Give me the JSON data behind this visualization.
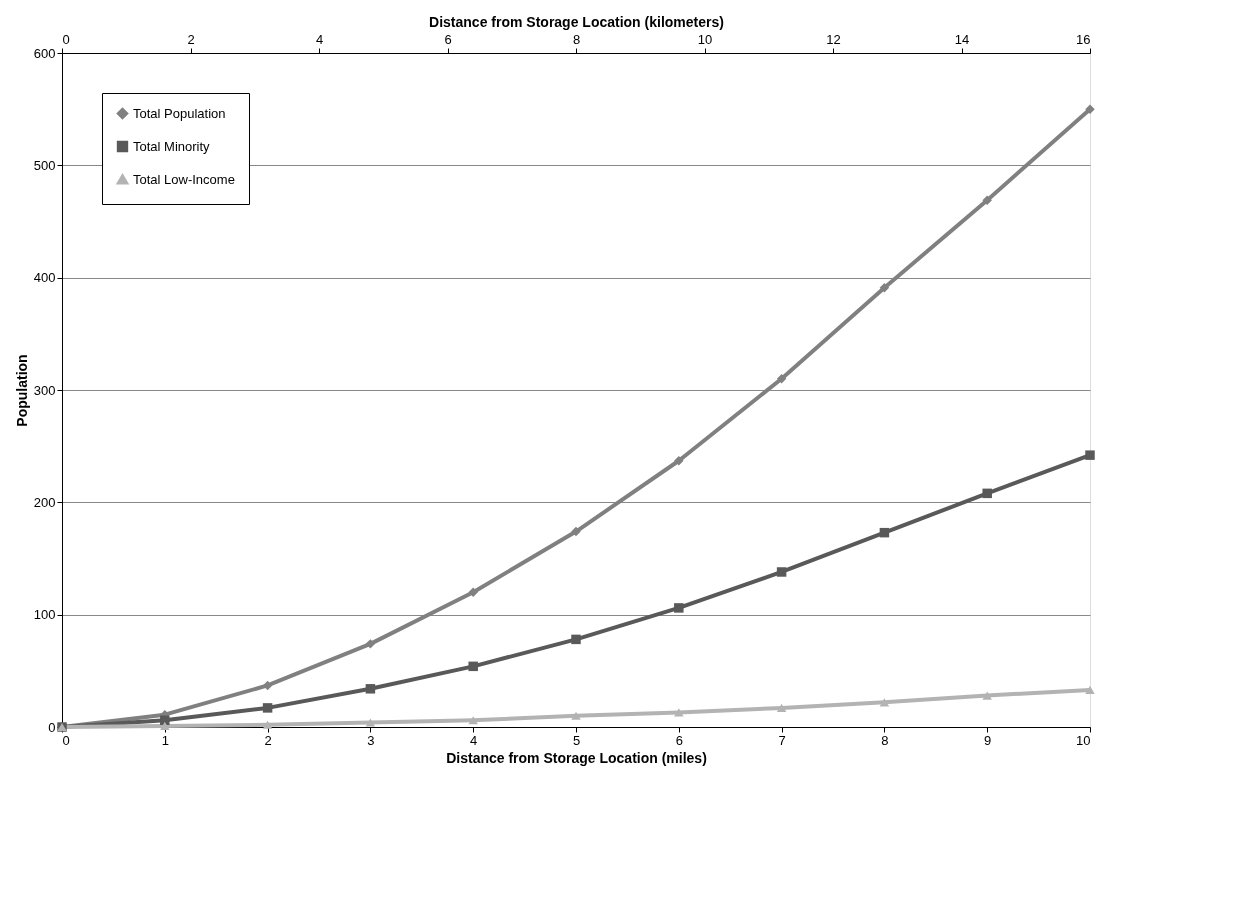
{
  "chart_data": {
    "type": "line",
    "xlabel": "Distance from Storage Location (miles)",
    "ylabel": "Population",
    "x2label": "Distance from Storage Location (kilometers)",
    "x": [
      0,
      1,
      2,
      3,
      4,
      5,
      6,
      7,
      8,
      9,
      10
    ],
    "xlim": [
      0,
      10
    ],
    "xticks": [
      0,
      1,
      2,
      3,
      4,
      5,
      6,
      7,
      8,
      9,
      10
    ],
    "x2lim": [
      0,
      16
    ],
    "x2ticks": [
      0,
      2,
      4,
      6,
      8,
      10,
      12,
      14,
      16
    ],
    "ylim": [
      0,
      600
    ],
    "yticks": [
      0,
      100,
      200,
      300,
      400,
      500,
      600
    ],
    "grid": "y",
    "legend": "top left",
    "line_style": "solid",
    "series": [
      {
        "name": "Total Population",
        "color": "#808080",
        "marker": "diamond",
        "values": [
          0,
          11,
          37,
          74,
          120,
          174,
          237,
          310,
          391,
          469,
          550
        ]
      },
      {
        "name": "Total Minority",
        "color": "#595959",
        "marker": "square",
        "values": [
          0,
          6,
          17,
          34,
          54,
          78,
          106,
          138,
          173,
          208,
          242
        ]
      },
      {
        "name": "Total Low-Income",
        "color": "#b3b3b3",
        "marker": "triangle",
        "values": [
          0,
          1,
          2,
          4,
          6,
          10,
          13,
          17,
          22,
          28,
          33
        ]
      }
    ]
  }
}
